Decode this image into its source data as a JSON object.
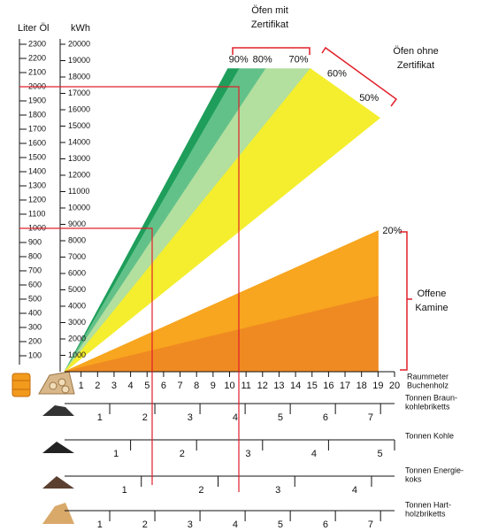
{
  "chart_data": {
    "type": "nomogram",
    "y_label": "Liter Öl",
    "ylim": [
      0,
      2300
    ],
    "yticks": [
      100,
      200,
      300,
      400,
      500,
      600,
      700,
      800,
      900,
      1000,
      1100,
      1200,
      1300,
      1400,
      1500,
      1600,
      1700,
      1800,
      1900,
      2000,
      2100,
      2200,
      2300
    ],
    "y2_label": "kWh",
    "y2lim": [
      0,
      20000
    ],
    "y2ticks": [
      1000,
      2000,
      3000,
      4000,
      5000,
      6000,
      7000,
      8000,
      9000,
      10000,
      11000,
      12000,
      13000,
      14000,
      15000,
      16000,
      17000,
      18000,
      19000,
      20000
    ],
    "x_label": [
      "Raummeter",
      "Buchenholz"
    ],
    "xlim": [
      0,
      20
    ],
    "xticks": [
      1,
      2,
      3,
      4,
      5,
      6,
      7,
      8,
      9,
      10,
      11,
      12,
      13,
      14,
      15,
      16,
      17,
      18,
      19,
      20
    ],
    "fans": [
      {
        "edges": [
          {
            "label": "90%",
            "x": 9.9,
            "value": 18500,
            "color": "#1e9e5a"
          },
          {
            "label": "80%",
            "x": 10.6,
            "value": 18500,
            "color": "#62c189"
          },
          {
            "label": "70%",
            "x": 12.2,
            "value": 18500,
            "color": "#b3df9f"
          },
          {
            "label": "60%",
            "x": 14.9,
            "value": 18500,
            "color": "#f4ee2e"
          },
          {
            "label": "50%",
            "x": 19.1,
            "value": 15500
          }
        ]
      },
      {
        "edges": [
          {
            "label": "20%",
            "x": 19,
            "value": 8600,
            "color": "#f8a51f"
          },
          {
            "x": 19,
            "value": 4600,
            "color": "#ef8a22"
          },
          {
            "x": 19,
            "value": 0
          }
        ]
      }
    ],
    "groups": [
      {
        "name": [
          "Öfen mit",
          "Zertifikat"
        ]
      },
      {
        "name": [
          "Öfen ohne",
          "Zertifikat"
        ]
      },
      {
        "name": [
          "Offene",
          "Kamine"
        ]
      }
    ],
    "scales": [
      {
        "name": [
          "Tonnen Braun-",
          "kohlebriketts"
        ],
        "xlim": [
          0,
          7.31
        ],
        "xticks": [
          1,
          2,
          3,
          4,
          5,
          6,
          7
        ]
      },
      {
        "name": [
          "Tonnen Kohle"
        ],
        "xlim": [
          0,
          5
        ],
        "xticks": [
          1,
          2,
          3,
          4,
          5
        ]
      },
      {
        "name": [
          "Tonnen Energie-",
          "koks"
        ],
        "xlim": [
          0,
          4.3
        ],
        "xticks": [
          1,
          2,
          3,
          4
        ]
      },
      {
        "name": [
          "Tonnen Hart-",
          "holzbriketts"
        ],
        "xlim": [
          0,
          7.31
        ],
        "xticks": [
          1,
          2,
          3,
          4,
          5,
          6,
          7
        ]
      }
    ]
  }
}
